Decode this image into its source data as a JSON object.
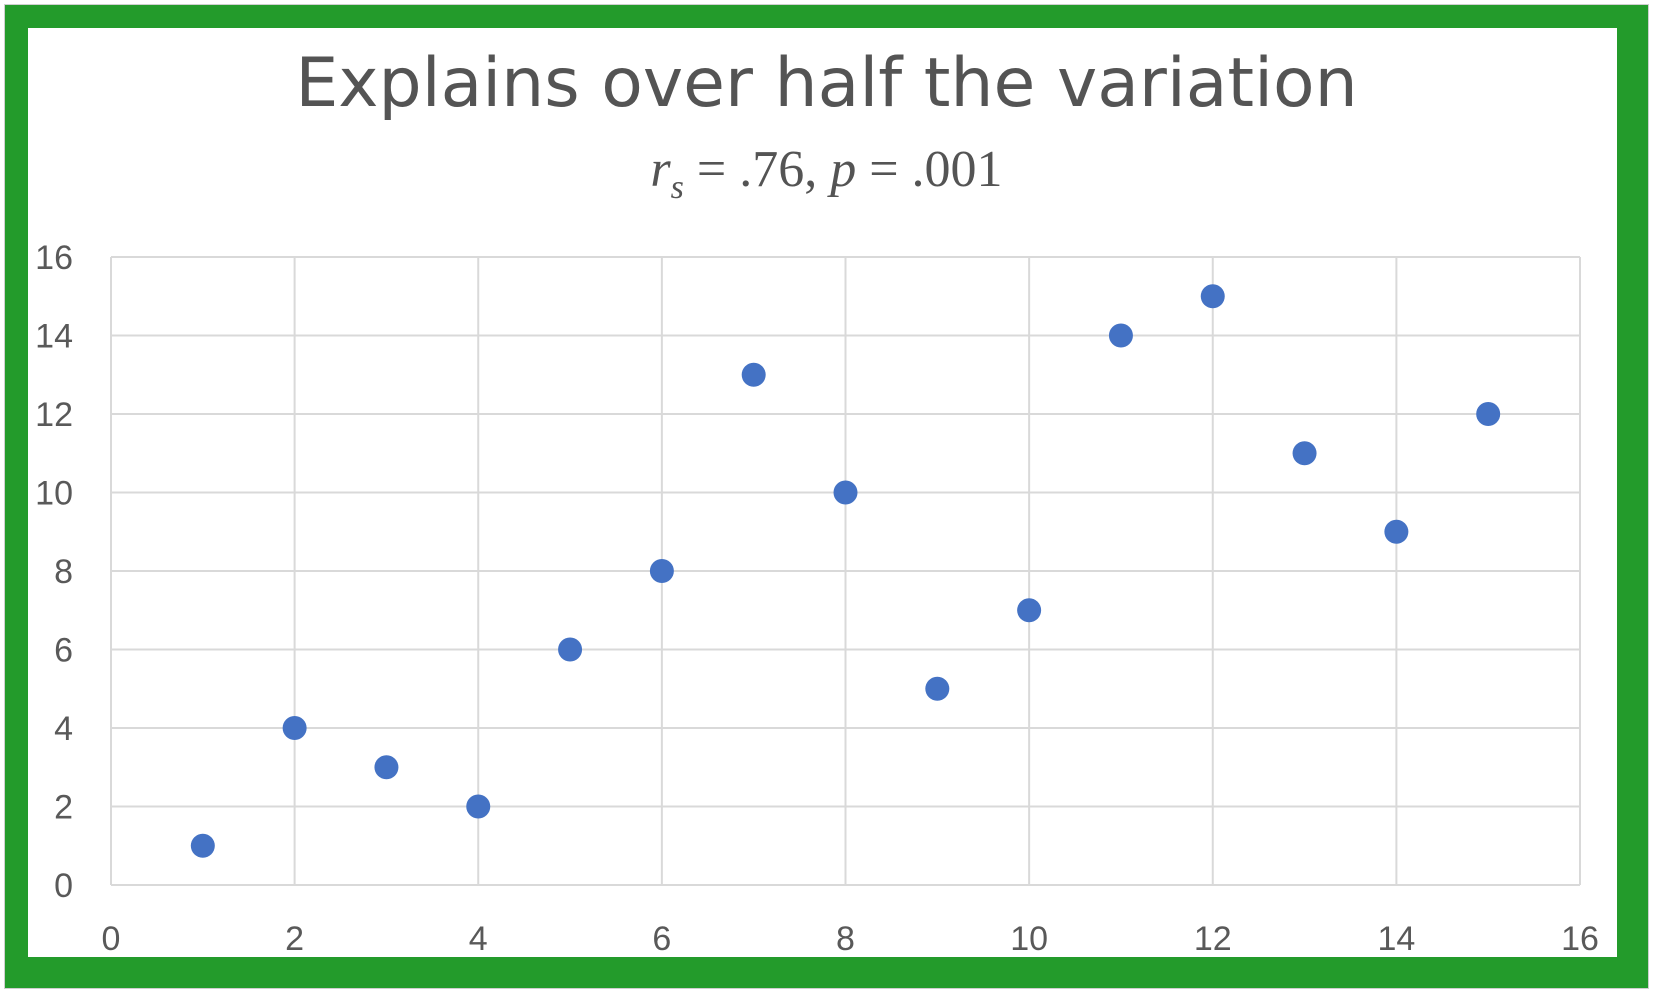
{
  "chart_data": {
    "type": "scatter",
    "title": "Explains over half the variation",
    "subtitle": {
      "r_symbol": "r",
      "r_subscript": "s",
      "r_text": " = .76, ",
      "p_symbol": "p",
      "p_text": " = .001"
    },
    "xlabel": "",
    "ylabel": "",
    "xlim": [
      0,
      16
    ],
    "ylim": [
      0,
      16
    ],
    "xticks": [
      0,
      2,
      4,
      6,
      8,
      10,
      12,
      14,
      16
    ],
    "yticks": [
      0,
      2,
      4,
      6,
      8,
      10,
      12,
      14,
      16
    ],
    "grid": true,
    "legend": "none",
    "marker_color": "#4472c4",
    "grid_color": "#d9d9d9",
    "points": [
      {
        "x": 1,
        "y": 1
      },
      {
        "x": 2,
        "y": 4
      },
      {
        "x": 3,
        "y": 3
      },
      {
        "x": 4,
        "y": 2
      },
      {
        "x": 5,
        "y": 6
      },
      {
        "x": 6,
        "y": 8
      },
      {
        "x": 7,
        "y": 13
      },
      {
        "x": 8,
        "y": 10
      },
      {
        "x": 9,
        "y": 5
      },
      {
        "x": 10,
        "y": 7
      },
      {
        "x": 11,
        "y": 14
      },
      {
        "x": 12,
        "y": 15
      },
      {
        "x": 13,
        "y": 11
      },
      {
        "x": 14,
        "y": 9
      },
      {
        "x": 15,
        "y": 12
      }
    ]
  },
  "colors": {
    "frame": "#239b2b",
    "text": "#545454"
  }
}
